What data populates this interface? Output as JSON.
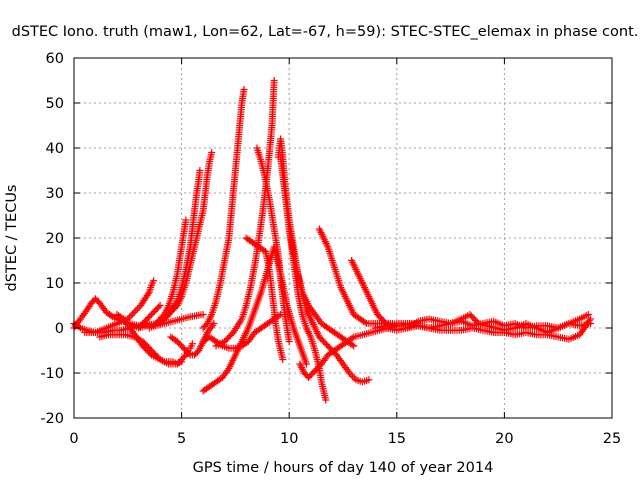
{
  "chart_data": {
    "type": "scatter",
    "title": "dSTEC Iono. truth (maw1, Lon=62, Lat=-67, h=59): STEC-STEC_elemax in phase cont.",
    "xlabel": "GPS time / hours of day 140 of year 2014",
    "ylabel": "dSTEC  / TECUs",
    "xlim": [
      0,
      25
    ],
    "ylim": [
      -20,
      60
    ],
    "x_ticks": [
      "0",
      "5",
      "10",
      "15",
      "20",
      "25"
    ],
    "y_ticks": [
      "-20",
      "-10",
      "0",
      "10",
      "20",
      "30",
      "40",
      "50",
      "60"
    ],
    "grid": true,
    "marker": "plus",
    "color": "#ff0000",
    "series": [
      {
        "x": [
          0.0,
          0.3,
          0.6,
          0.8,
          1.0,
          1.2,
          1.5,
          1.8,
          2.0,
          2.3,
          2.6,
          3.0
        ],
        "y": [
          0,
          2,
          4,
          5.5,
          6.5,
          5.5,
          3.5,
          2.5,
          2,
          1.5,
          1,
          0.5
        ]
      },
      {
        "x": [
          0.0,
          0.3,
          0.6,
          1.0,
          1.4,
          1.8,
          2.2,
          2.6,
          3.0,
          3.4,
          3.8,
          4.2,
          4.6,
          5.0,
          5.4,
          6.0
        ],
        "y": [
          1,
          0,
          -0.5,
          -1,
          -1,
          -0.5,
          -0.5,
          0,
          0.5,
          1,
          0.5,
          1,
          1.5,
          2,
          2.5,
          3
        ]
      },
      {
        "x": [
          0.5,
          1.0,
          1.5,
          2.0,
          2.5,
          2.8,
          3.1,
          3.3,
          3.5,
          3.6,
          3.7
        ],
        "y": [
          -1,
          -1,
          0,
          1,
          2,
          3.5,
          5,
          6.5,
          8,
          9.5,
          10.5
        ]
      },
      {
        "x": [
          2.0,
          2.3,
          2.6,
          2.9,
          3.2,
          3.4,
          3.6,
          3.8,
          4.0,
          4.2,
          4.4,
          4.6,
          4.8,
          5.0
        ],
        "y": [
          3,
          2,
          0,
          -2,
          -4,
          -5,
          -6,
          -6.5,
          -7,
          -7.5,
          -7.5,
          -7.5,
          -8,
          -7.5
        ]
      },
      {
        "x": [
          1.2,
          1.6,
          2.0,
          2.4,
          2.8,
          3.2,
          3.4,
          3.6,
          3.8,
          4.0,
          4.2,
          4.4,
          4.6,
          4.8,
          5.0,
          5.2,
          5.3,
          5.4,
          5.5
        ],
        "y": [
          -2,
          -1.5,
          -1.5,
          -1.5,
          -2,
          -3,
          -4,
          -5,
          -6,
          -7,
          -7.5,
          -8,
          -8,
          -8,
          -7,
          -6,
          -5,
          -4.5,
          -3.5
        ]
      },
      {
        "x": [
          2.5,
          2.8,
          3.0,
          3.2,
          3.4,
          3.6,
          3.8,
          4.0
        ],
        "y": [
          1,
          0.5,
          0,
          1,
          2,
          3,
          4,
          5
        ]
      },
      {
        "x": [
          3.0,
          3.4,
          3.8,
          4.2,
          4.4,
          4.6,
          4.8,
          4.9,
          5.0,
          5.1,
          5.2
        ],
        "y": [
          0,
          0.5,
          1,
          3,
          5,
          8,
          12,
          15,
          18,
          21,
          24
        ]
      },
      {
        "x": [
          3.5,
          4.0,
          4.4,
          4.8,
          5.0,
          5.2,
          5.4,
          5.5,
          5.6,
          5.7,
          5.8,
          5.85
        ],
        "y": [
          0,
          1,
          3,
          6,
          9,
          13,
          18,
          22,
          26,
          30,
          33,
          35
        ]
      },
      {
        "x": [
          4.0,
          4.4,
          4.8,
          5.0,
          5.2,
          5.4,
          5.6,
          5.8,
          6.0,
          6.1,
          6.2,
          6.3,
          6.4
        ],
        "y": [
          1,
          3,
          5,
          7,
          10,
          14,
          18,
          22,
          26,
          30,
          34,
          37,
          39
        ]
      },
      {
        "x": [
          4.5,
          4.8,
          5.0,
          5.2,
          5.4,
          5.6,
          5.8,
          6.0,
          6.2,
          6.5
        ],
        "y": [
          -2,
          -3,
          -4,
          -5,
          -6,
          -6,
          -5,
          -3,
          -1,
          1
        ]
      },
      {
        "x": [
          6.0,
          6.3,
          6.6,
          6.9,
          7.2,
          7.5,
          7.8,
          8.1,
          8.4,
          8.7,
          9.0,
          9.3,
          9.6
        ],
        "y": [
          -3,
          -2,
          -3,
          -4,
          -4.5,
          -4.5,
          -4,
          -3,
          -1,
          0,
          1,
          2,
          3
        ]
      },
      {
        "x": [
          6.0,
          6.2,
          6.4,
          6.6,
          6.8,
          7.0,
          7.2,
          7.3,
          7.4,
          7.5,
          7.6,
          7.7,
          7.8,
          7.9
        ],
        "y": [
          0,
          1,
          3,
          6,
          10,
          15,
          20,
          25,
          30,
          35,
          40,
          45,
          50,
          53
        ]
      },
      {
        "x": [
          6.0,
          6.3,
          6.6,
          6.9,
          7.2,
          7.5,
          7.8,
          8.1,
          8.4,
          8.7,
          9.0,
          9.3,
          9.6,
          9.9,
          10.2,
          10.5,
          10.8
        ],
        "y": [
          -14,
          -13,
          -12,
          -11,
          -9,
          -6,
          -3,
          0,
          4,
          8,
          13,
          18,
          12,
          5,
          0,
          -4,
          -8
        ]
      },
      {
        "x": [
          6.6,
          7.0,
          7.4,
          7.8,
          8.0,
          8.2,
          8.4,
          8.6,
          8.8,
          9.0,
          9.2,
          9.3
        ],
        "y": [
          -4,
          -3,
          -1,
          2,
          5,
          9,
          14,
          20,
          27,
          35,
          45,
          55
        ]
      },
      {
        "x": [
          8.0,
          8.3,
          8.6,
          8.9,
          9.0,
          9.1,
          9.2,
          9.3,
          9.4,
          9.5,
          9.6,
          9.7
        ],
        "y": [
          20,
          19,
          18,
          17,
          15,
          12,
          8,
          4,
          0,
          -3,
          -5,
          -7
        ]
      },
      {
        "x": [
          8.5,
          8.7,
          8.9,
          9.1,
          9.3,
          9.5,
          9.6,
          9.7,
          9.8,
          9.9,
          10.0
        ],
        "y": [
          40,
          37,
          33,
          28,
          22,
          16,
          11,
          7,
          3,
          0,
          -3
        ]
      },
      {
        "x": [
          9.5,
          9.6,
          9.7,
          9.8,
          9.9,
          10.0,
          10.2,
          10.4,
          10.6,
          10.8,
          11.0,
          11.2,
          11.4,
          11.6,
          11.8,
          12.0,
          12.2,
          12.5,
          12.8,
          13.1,
          13.4,
          13.7
        ],
        "y": [
          38,
          42,
          38,
          32,
          28,
          24,
          18,
          12,
          8,
          4,
          2,
          0,
          -2,
          -3,
          -4,
          -5,
          -6,
          -8,
          -10,
          -11.5,
          -12,
          -11.5
        ]
      },
      {
        "x": [
          10.0,
          10.2,
          10.4,
          10.6,
          10.8,
          11.0,
          11.2,
          11.4,
          11.5,
          11.6,
          11.7
        ],
        "y": [
          22,
          15,
          8,
          3,
          0,
          -2,
          -5,
          -9,
          -12,
          -14,
          -16
        ]
      },
      {
        "x": [
          9.6,
          9.8,
          10.0,
          10.3,
          10.6,
          10.9,
          11.2,
          11.5,
          11.8,
          12.1,
          12.4,
          12.7,
          13.0
        ],
        "y": [
          38,
          30,
          22,
          14,
          8,
          5,
          3,
          1,
          0,
          -1,
          -2,
          -3,
          -4
        ]
      },
      {
        "x": [
          10.5,
          10.7,
          10.9,
          11.1,
          11.3,
          11.5,
          11.8,
          12.1,
          12.4,
          12.7,
          13.0,
          13.4,
          13.8,
          14.2,
          14.6,
          15.0
        ],
        "y": [
          -8,
          -10,
          -11,
          -10,
          -9,
          -8,
          -6,
          -5,
          -4,
          -3,
          -2,
          -1.5,
          -1,
          -0.5,
          0,
          0.5
        ]
      },
      {
        "x": [
          11.4,
          11.6,
          11.8,
          12.0,
          12.2,
          12.4,
          12.6,
          12.8,
          13.0,
          13.3,
          13.6,
          14.0,
          14.4,
          14.8
        ],
        "y": [
          22,
          20,
          18,
          15,
          12,
          9,
          7,
          5,
          3,
          2,
          1,
          1,
          1,
          1
        ]
      },
      {
        "x": [
          12.9,
          13.1,
          13.3,
          13.5,
          13.7,
          13.9,
          14.1,
          14.3,
          14.5,
          14.8,
          15.2,
          15.6,
          16.0
        ],
        "y": [
          15,
          13,
          11,
          9,
          7,
          5,
          3,
          2,
          1,
          0.5,
          0.5,
          1,
          1
        ]
      },
      {
        "x": [
          14.0,
          14.5,
          15.0,
          15.5,
          16.0,
          16.5,
          17.0,
          17.5,
          18.0,
          18.5,
          19.0,
          19.5,
          20.0,
          20.5,
          21.0,
          21.5,
          22.0,
          22.5,
          23.0,
          23.5,
          24.0
        ],
        "y": [
          0,
          0.5,
          1,
          1,
          0.5,
          0,
          0.5,
          1,
          1.5,
          0.5,
          1,
          1.5,
          0.5,
          1,
          0,
          0.5,
          0.5,
          0,
          1,
          0.5,
          1
        ]
      },
      {
        "x": [
          14.5,
          15.0,
          15.5,
          16.0,
          16.5,
          17.0,
          17.5,
          18.0,
          18.5,
          19.0,
          19.5,
          20.0,
          20.5,
          21.0,
          21.5,
          22.0,
          22.5,
          23.0,
          23.5,
          24.0
        ],
        "y": [
          0,
          -0.5,
          0,
          0.5,
          0,
          -0.5,
          -0.5,
          -0.5,
          0,
          -0.5,
          -1,
          -1,
          -1.5,
          -1,
          -1.5,
          -1.5,
          -2,
          -2.5,
          -1.5,
          2
        ]
      },
      {
        "x": [
          15.5,
          16.0,
          16.5,
          17.0,
          17.5,
          18.0,
          18.4,
          18.8,
          19.2,
          19.6,
          20.0,
          20.5,
          21.0,
          21.5,
          22.0,
          22.5,
          23.0,
          23.5,
          23.9
        ],
        "y": [
          0,
          1.5,
          2,
          1.5,
          1,
          2,
          3,
          1,
          0.5,
          0,
          -0.5,
          0,
          1,
          0,
          -1,
          0,
          1,
          2,
          3
        ]
      }
    ]
  }
}
